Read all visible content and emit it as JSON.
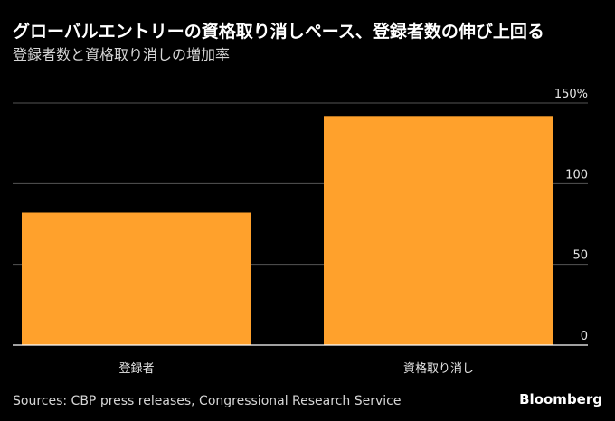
{
  "header": {
    "title": "グローバルエントリーの資格取り消しペース、登録者数の伸び上回る",
    "subtitle": "登録者数と資格取り消しの増加率"
  },
  "footer": {
    "source": "Sources: CBP press releases, Congressional Research Service",
    "brand": "Bloomberg"
  },
  "colors": {
    "bar": "#FFA12C",
    "grid": "#555555",
    "axis": "#ffffff",
    "background": "#000000"
  },
  "chart_data": {
    "type": "bar",
    "title": "グローバルエントリーの資格取り消しペース、登録者数の伸び上回る",
    "subtitle": "登録者数と資格取り消しの増加率",
    "categories": [
      "登録者",
      "資格取り消し"
    ],
    "values": [
      82,
      142
    ],
    "unit": "%",
    "ylim": [
      0,
      150
    ],
    "yticks": [
      0,
      50,
      100,
      150
    ],
    "ytick_labels": [
      "0",
      "50",
      "100",
      "150%"
    ],
    "y_axis_side": "right",
    "grid": true,
    "xlabel": "",
    "ylabel": ""
  }
}
